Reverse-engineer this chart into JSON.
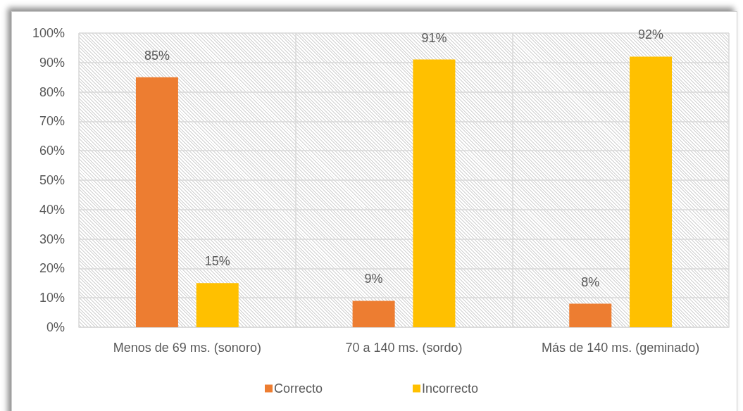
{
  "chart_data": {
    "type": "bar",
    "categories": [
      "Menos de 69 ms. (sonoro)",
      "70 a 140 ms. (sordo)",
      "Más de 140 ms. (geminado)"
    ],
    "series": [
      {
        "name": "Correcto",
        "color": "#ed7d31",
        "values": [
          85,
          9,
          8
        ],
        "value_labels": [
          "85%",
          "9%",
          "8%"
        ]
      },
      {
        "name": "Incorrecto",
        "color": "#ffc000",
        "values": [
          15,
          91,
          92
        ],
        "value_labels": [
          "15%",
          "91%",
          "92%"
        ]
      }
    ],
    "ylim": [
      0,
      100
    ],
    "yticks": [
      {
        "value": 0,
        "label": "0%"
      },
      {
        "value": 10,
        "label": "10%"
      },
      {
        "value": 20,
        "label": "20%"
      },
      {
        "value": 30,
        "label": "30%"
      },
      {
        "value": 40,
        "label": "40%"
      },
      {
        "value": 50,
        "label": "50%"
      },
      {
        "value": 60,
        "label": "60%"
      },
      {
        "value": 70,
        "label": "70%"
      },
      {
        "value": 80,
        "label": "80%"
      },
      {
        "value": 90,
        "label": "90%"
      },
      {
        "value": 100,
        "label": "100%"
      }
    ],
    "grid": true,
    "legend": "bottom"
  }
}
